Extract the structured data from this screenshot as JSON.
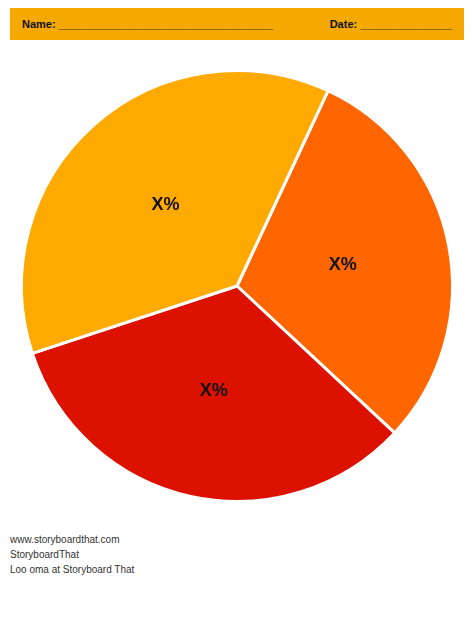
{
  "chart_data": {
    "type": "pie",
    "values": [
      30,
      33,
      37
    ],
    "colors": [
      "#ff6600",
      "#dd1100",
      "#ffaa00"
    ],
    "data_labels": true,
    "value_labels": [
      "X%",
      "X%",
      "X%"
    ],
    "annotations": [
      "Name: ___________________________________",
      "Date: _______________",
      "www.storyboardthat.com",
      "StoryboardThat",
      "Loo oma at Storyboard That"
    ]
  }
}
